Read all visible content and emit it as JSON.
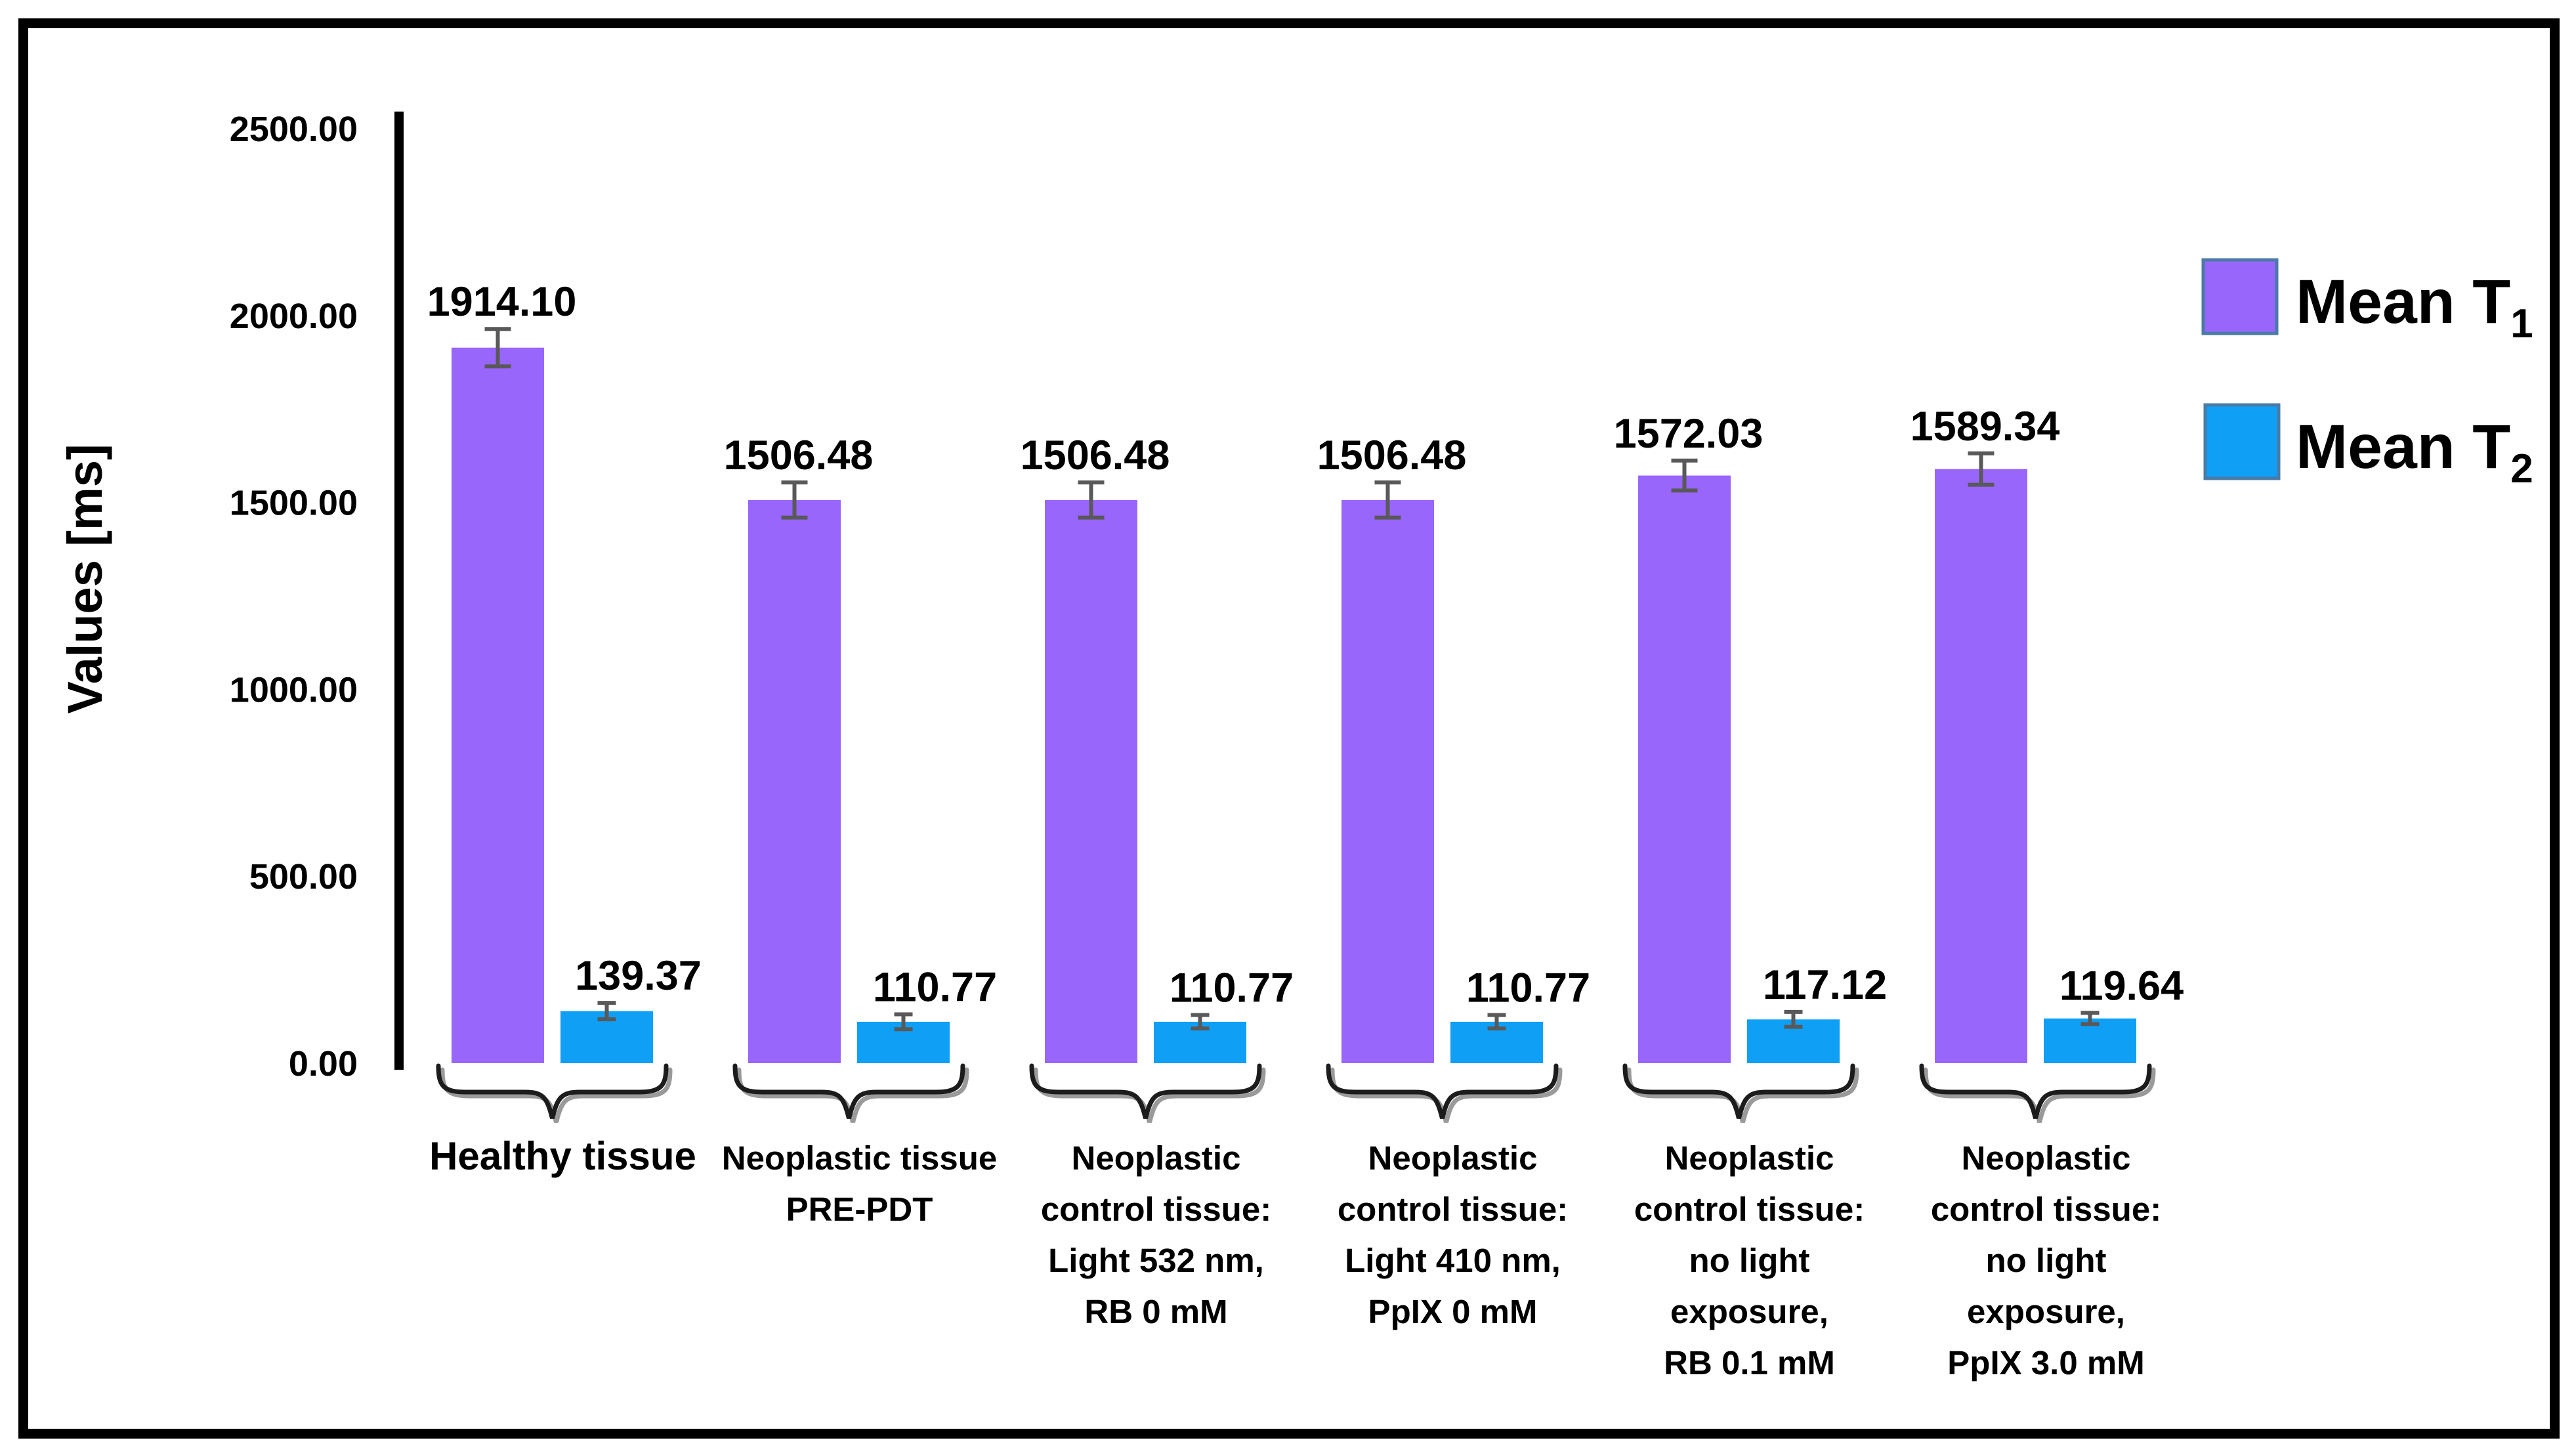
{
  "frame": {
    "background": "#ffffff",
    "border_color": "#000000"
  },
  "chart_data": {
    "type": "bar",
    "title": "",
    "xlabel": "",
    "ylabel": "Values [ms]",
    "ylim": [
      0,
      2500
    ],
    "grid": false,
    "legend_position": "right",
    "axis_color": "#000000",
    "error_bar_color": "#595959",
    "value_label_color": "#000000",
    "yticks": [
      {
        "value": 0,
        "label": "0.00"
      },
      {
        "value": 500,
        "label": "500.00"
      },
      {
        "value": 1000,
        "label": "1000.00"
      },
      {
        "value": 1500,
        "label": "1500.00"
      },
      {
        "value": 2000,
        "label": "2000.00"
      },
      {
        "value": 2500,
        "label": "2500.00"
      }
    ],
    "categories": [
      {
        "lines": [
          "Healthy tissue"
        ],
        "emphasized": true
      },
      {
        "lines": [
          "Neoplastic tissue",
          "PRE-PDT"
        ],
        "emphasized": false
      },
      {
        "lines": [
          "Neoplastic",
          "control tissue:",
          "Light 532 nm,",
          "RB 0 mM"
        ],
        "emphasized": false
      },
      {
        "lines": [
          "Neoplastic",
          "control tissue:",
          "Light 410 nm,",
          "PpIX 0 mM"
        ],
        "emphasized": false
      },
      {
        "lines": [
          "Neoplastic",
          "control tissue:",
          "no light",
          "exposure,",
          "RB 0.1 mM"
        ],
        "emphasized": false
      },
      {
        "lines": [
          "Neoplastic",
          "control tissue:",
          "no light",
          "exposure,",
          "PpIX 3.0 mM"
        ],
        "emphasized": false
      }
    ],
    "series": [
      {
        "name": "Mean T",
        "subscript": "1",
        "color": "#9966fb",
        "values": [
          1914.1,
          1506.48,
          1506.48,
          1506.48,
          1572.03,
          1589.34
        ],
        "labels": [
          "1914.10",
          "1506.48",
          "1506.48",
          "1506.48",
          "1572.03",
          "1589.34"
        ],
        "errors": [
          50,
          47,
          47,
          47,
          40,
          42
        ]
      },
      {
        "name": "Mean T",
        "subscript": "2",
        "color": "#0fa0f6",
        "values": [
          139.37,
          110.77,
          110.77,
          110.77,
          117.12,
          119.64
        ],
        "labels": [
          "139.37",
          "110.77",
          "110.77",
          "110.77",
          "117.12",
          "119.64"
        ],
        "errors": [
          22,
          20,
          18,
          18,
          20,
          15
        ]
      }
    ],
    "legend": {
      "swatch_border_color": "#4a7aa8",
      "items": [
        {
          "label": "Mean T",
          "sub": "1",
          "series": 0
        },
        {
          "label": "Mean T",
          "sub": "2",
          "series": 1
        }
      ]
    }
  }
}
